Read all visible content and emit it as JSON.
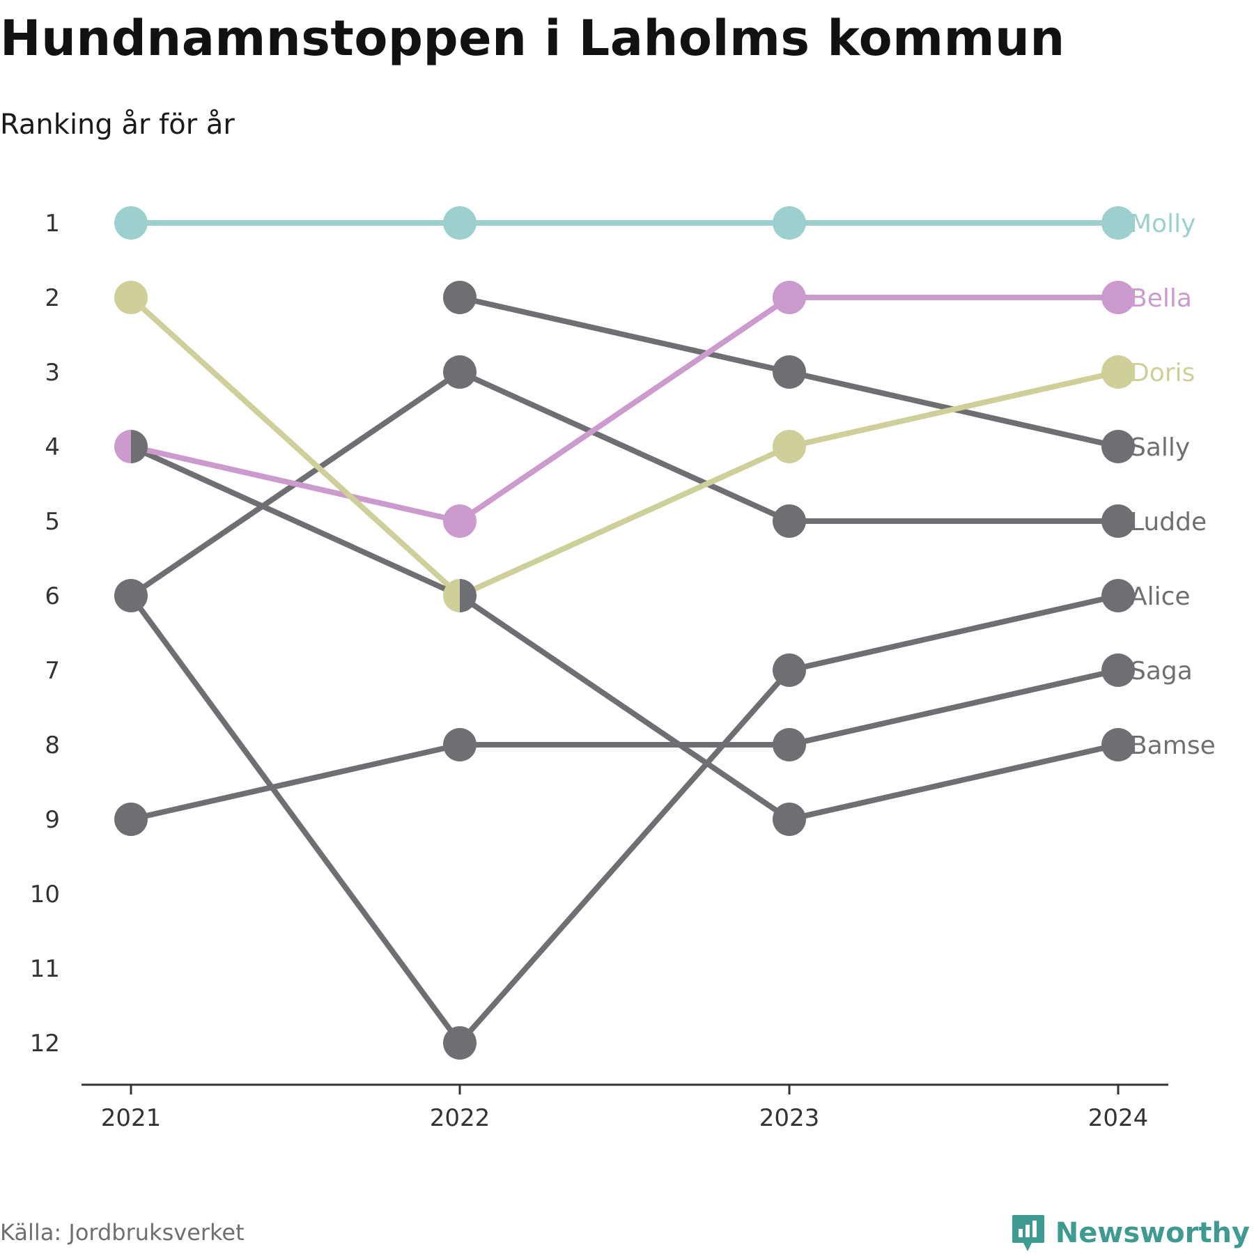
{
  "chart_data": {
    "type": "line",
    "title": "Hundnamnstoppen i Laholms kommun",
    "subtitle": "Ranking år för år",
    "source": "Källa: Jordbruksverket",
    "brand": "Newsworthy",
    "x": [
      "2021",
      "2022",
      "2023",
      "2024"
    ],
    "y_ticks": [
      "1",
      "2",
      "3",
      "4",
      "5",
      "6",
      "7",
      "8",
      "9",
      "10",
      "11",
      "12"
    ],
    "ylim": [
      1,
      12
    ],
    "y_reversed": true,
    "grid": false,
    "legend": "direct labels at right end of each line",
    "series": [
      {
        "name": "Molly",
        "color": "#9ccfce",
        "ranks": [
          1,
          1,
          1,
          1
        ]
      },
      {
        "name": "Bella",
        "color": "#cc9bcd",
        "ranks": [
          4,
          5,
          2,
          2
        ]
      },
      {
        "name": "Doris",
        "color": "#cfcf99",
        "ranks": [
          2,
          6,
          4,
          3
        ]
      },
      {
        "name": "Sally",
        "color": "#6f6e73",
        "ranks": [
          null,
          2,
          3,
          4
        ]
      },
      {
        "name": "Ludde",
        "color": "#6f6e73",
        "ranks": [
          6,
          3,
          5,
          5
        ]
      },
      {
        "name": "Alice",
        "color": "#6f6e73",
        "ranks": [
          6,
          12,
          7,
          6
        ]
      },
      {
        "name": "Saga",
        "color": "#6f6e73",
        "ranks": [
          9,
          8,
          8,
          7
        ]
      },
      {
        "name": "Bamse",
        "color": "#6f6e73",
        "ranks": [
          4,
          6,
          9,
          8
        ]
      }
    ]
  }
}
